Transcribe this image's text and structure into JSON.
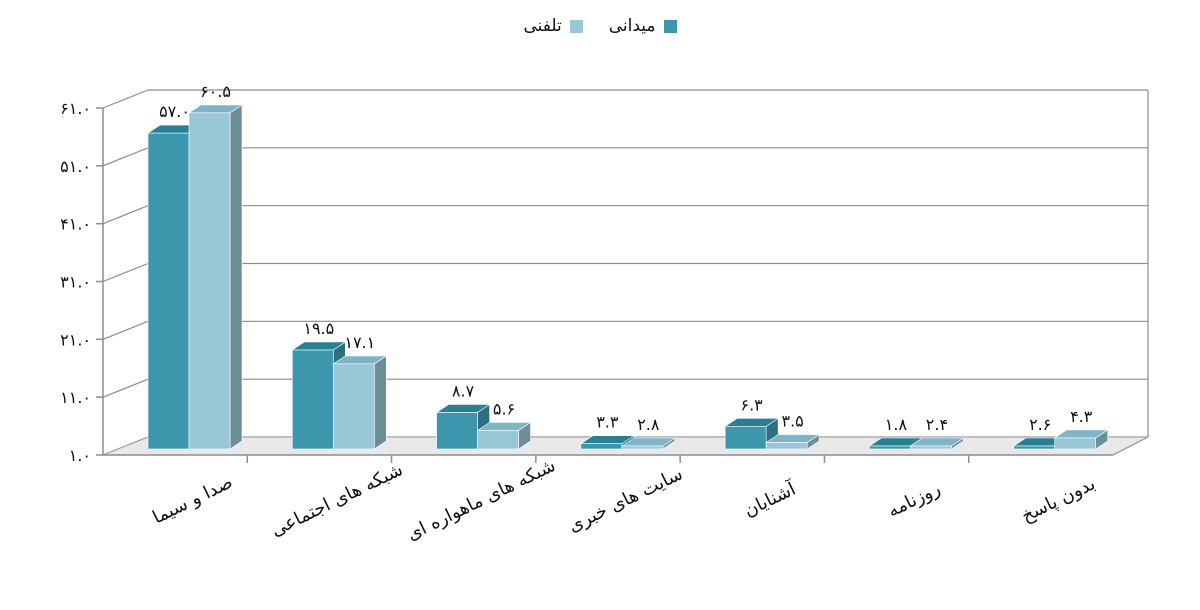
{
  "chart_data": {
    "type": "bar",
    "title": "",
    "xlabel": "",
    "ylabel": "",
    "categories": [
      "صدا و سیما",
      "شبکه های اجتماعی",
      "شبکه های ماهواره ای",
      "سایت های خبری",
      "آشنایان",
      "روزنامه",
      "بدون پاسخ"
    ],
    "series": [
      {
        "name": "میدانی",
        "color": "#3c97ad",
        "top_color": "#2a7f94",
        "side_color": "#2b6e80",
        "values": [
          57.0,
          19.5,
          8.7,
          3.3,
          6.3,
          1.8,
          2.6
        ],
        "labels": [
          "۵۷.۰",
          "۱۹.۵",
          "۸.۷",
          "۳.۳",
          "۶.۳",
          "۱.۸",
          "۲.۶"
        ]
      },
      {
        "name": "تلفنی",
        "color": "#98c8d8",
        "top_color": "#7fb4c7",
        "side_color": "#6c8e99",
        "values": [
          60.5,
          17.1,
          5.6,
          2.8,
          3.5,
          2.4,
          4.3
        ],
        "labels": [
          "۶۰.۵",
          "۱۷.۱",
          "۵.۶",
          "۲.۸",
          "۳.۵",
          "۲.۴",
          "۴.۳"
        ]
      }
    ],
    "yticks": [
      1,
      11,
      21,
      31,
      41,
      51,
      61
    ],
    "ytick_labels": [
      "۱.۰",
      "۱۱.۰",
      "۲۱.۰",
      "۳۱.۰",
      "۴۱.۰",
      "۵۱.۰",
      "۶۱.۰"
    ],
    "ylim": [
      1,
      61
    ],
    "grid": true,
    "legend": "top-center",
    "style": "3d-clustered-bar"
  }
}
